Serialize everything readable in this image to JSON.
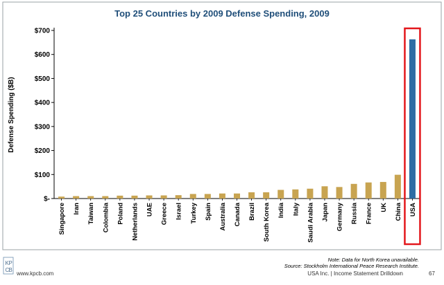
{
  "chart_data": {
    "type": "bar",
    "title": "Top 25 Countries by 2009 Defense Spending, 2009",
    "xlabel": "",
    "ylabel": "Defense Spending ($B)",
    "ylim": [
      0,
      700
    ],
    "ytick_values": [
      0,
      100,
      200,
      300,
      400,
      500,
      600,
      700
    ],
    "ytick_labels": [
      "$-",
      "$100",
      "$200",
      "$300",
      "$400",
      "$500",
      "$600",
      "$700"
    ],
    "categories": [
      "Singapore",
      "Iran",
      "Taiwan",
      "Colombia",
      "Poland",
      "Netherlands",
      "UAE",
      "Greece",
      "Israel",
      "Turkey",
      "Spain",
      "Australia",
      "Canada",
      "Brazil",
      "South Korea",
      "India",
      "Italy",
      "Saudi Arabia",
      "Japan",
      "Germany",
      "Russia",
      "France",
      "UK",
      "China",
      "USA"
    ],
    "values": [
      8,
      10,
      10,
      10,
      12,
      12,
      13,
      13,
      14,
      19,
      19,
      21,
      21,
      26,
      26,
      36,
      38,
      41,
      51,
      48,
      61,
      67,
      69,
      99,
      663
    ],
    "highlight": "USA",
    "bar_color": "#c8a451",
    "highlight_color": "#2e6da4",
    "highlight_box_color": "#e3161b",
    "grid": false
  },
  "footer": {
    "note": "Note: Data for North Korea unavailable.",
    "source": "Source: Stockholm International Peace Research Institute.",
    "section": "USA Inc. | Income Statement Drilldown",
    "page": "67",
    "logo_text": "KPCB",
    "website": "www.kpcb.com"
  },
  "colors": {
    "title": "#1f4e79",
    "frame": "#9aa0a6"
  }
}
